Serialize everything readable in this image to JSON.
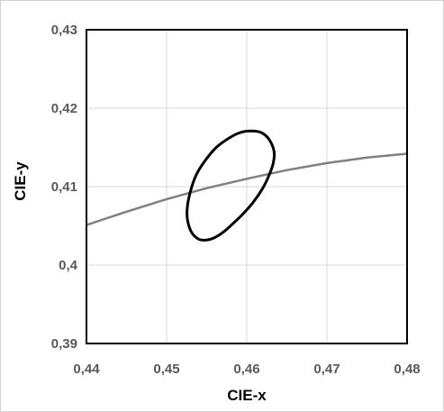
{
  "chart_data": {
    "type": "line",
    "title": "",
    "xlabel": "CIE-x",
    "ylabel": "CIE-y",
    "xlim": [
      0.44,
      0.48
    ],
    "ylim": [
      0.39,
      0.43
    ],
    "x_ticks": [
      0.44,
      0.45,
      0.46,
      0.47,
      0.48
    ],
    "y_ticks": [
      0.39,
      0.4,
      0.41,
      0.42,
      0.43
    ],
    "x_tick_labels": [
      "0,44",
      "0,45",
      "0,46",
      "0,47",
      "0,48"
    ],
    "y_tick_labels": [
      "0,39",
      "0,4",
      "0,41",
      "0,42",
      "0,43"
    ],
    "grid": true,
    "legend": "none",
    "series": [
      {
        "type": "line",
        "color": "#808080",
        "x": [
          0.44,
          0.445,
          0.45,
          0.455,
          0.46,
          0.465,
          0.47,
          0.475,
          0.48
        ],
        "y": [
          0.4051,
          0.4068,
          0.4084,
          0.4098,
          0.411,
          0.4121,
          0.413,
          0.4137,
          0.4142
        ]
      },
      {
        "type": "closed-curve",
        "color": "#000000",
        "x": [
          0.4605,
          0.4618,
          0.4628,
          0.4634,
          0.4633,
          0.4628,
          0.462,
          0.4608,
          0.4595,
          0.4585,
          0.4572,
          0.456,
          0.455,
          0.454,
          0.4531,
          0.4526,
          0.4526,
          0.453,
          0.4537,
          0.4548,
          0.4562,
          0.4578,
          0.4592
        ],
        "y": [
          0.4171,
          0.4169,
          0.416,
          0.4145,
          0.413,
          0.4115,
          0.4098,
          0.408,
          0.4065,
          0.4055,
          0.4043,
          0.4035,
          0.4032,
          0.4033,
          0.4042,
          0.4058,
          0.4075,
          0.4095,
          0.4115,
          0.4133,
          0.415,
          0.4162,
          0.4169
        ]
      }
    ]
  }
}
